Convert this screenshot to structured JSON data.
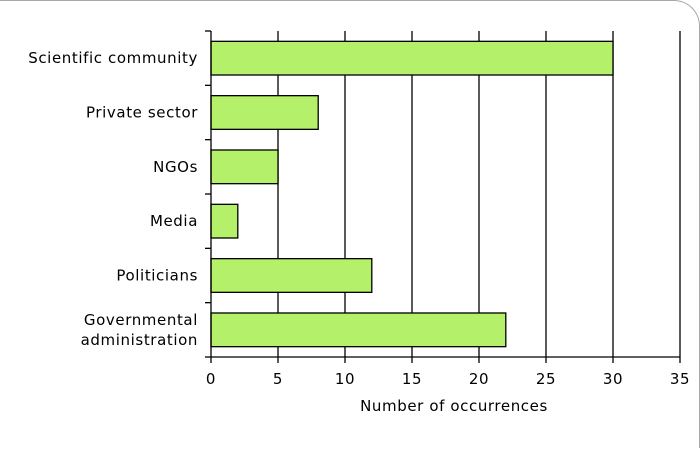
{
  "chart_data": {
    "type": "bar",
    "orientation": "horizontal",
    "categories": [
      [
        "Scientific community"
      ],
      [
        "Private sector"
      ],
      [
        "NGOs"
      ],
      [
        "Media"
      ],
      [
        "Politicians"
      ],
      [
        "Governmental",
        "administration"
      ]
    ],
    "values": [
      30,
      8,
      5,
      2,
      12,
      22
    ],
    "xlabel": "Number of occurrences",
    "ylabel": "",
    "title": "",
    "xlim": [
      0,
      35
    ],
    "xticks": [
      "0",
      "5",
      "10",
      "15",
      "20",
      "25",
      "30",
      "35"
    ],
    "grid": "vertical",
    "legend": "none",
    "colors": {
      "bar": "#b5f06a",
      "bar_edge": "#000000",
      "grid": "#000000",
      "frame": "#a8a8a8"
    }
  }
}
